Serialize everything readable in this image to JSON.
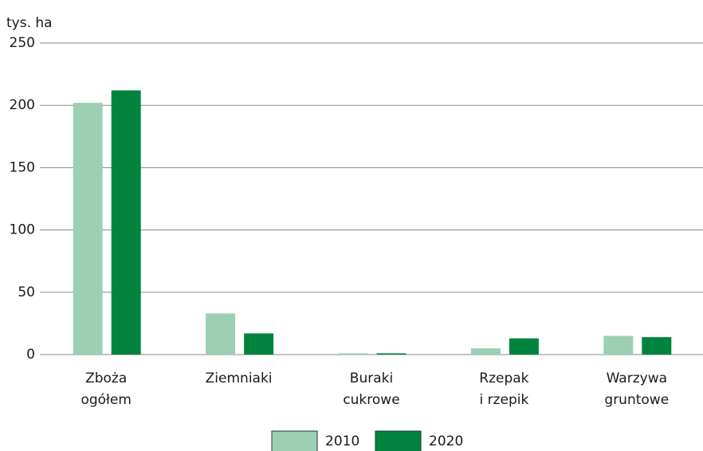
{
  "chart_data": {
    "type": "bar",
    "y_label": "tys. ha",
    "categories": [
      "Zboża\nogółem",
      "Ziemniaki",
      "Buraki\ncukrowe",
      "Rzepak\ni rzepik",
      "Warzywa\ngruntowe"
    ],
    "series": [
      {
        "name": "2010",
        "color": "#9dcfb4",
        "values": [
          202,
          33,
          1,
          5,
          15
        ]
      },
      {
        "name": "2020",
        "color": "#00843d",
        "values": [
          212,
          17,
          1,
          13,
          14
        ]
      }
    ],
    "ylim": [
      0,
      250
    ],
    "yticks": [
      0,
      50,
      100,
      150,
      200,
      250
    ],
    "grid": true
  }
}
